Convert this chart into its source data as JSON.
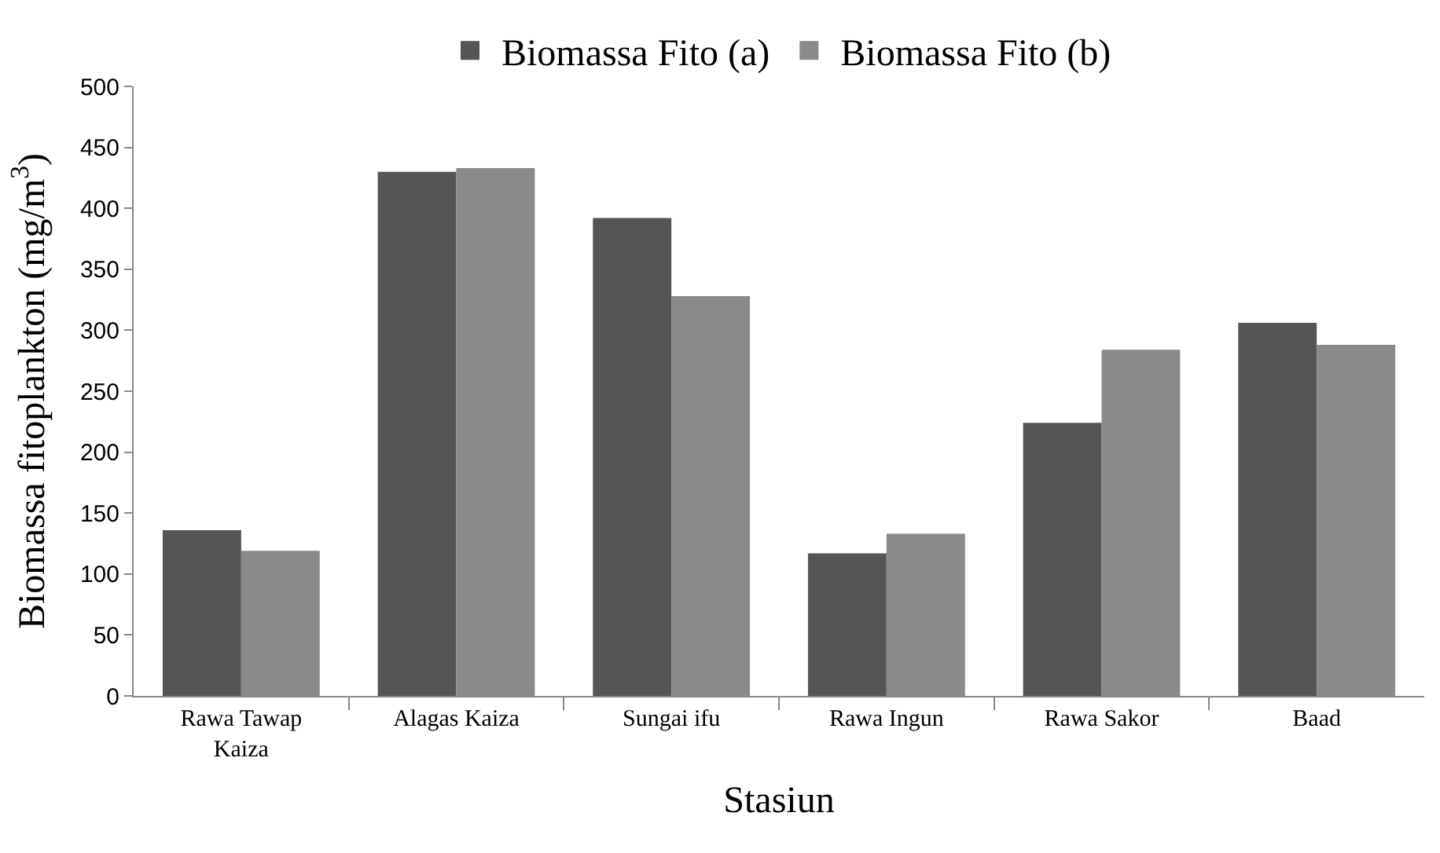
{
  "chart_data": {
    "type": "bar",
    "xlabel": "Stasiun",
    "ylabel": "Biomassa fitoplankton (mg/m$^{3}$)",
    "categories": [
      "Rawa Tawap Kaiza",
      "Alagas Kaiza",
      "Sungai ifu",
      "Rawa Ingun",
      "Rawa Sakor",
      "Baad"
    ],
    "series": [
      {
        "name": "Biomassa Fito (a)",
        "color": "#555555",
        "values": [
          136,
          430,
          392,
          117,
          224,
          306
        ]
      },
      {
        "name": "Biomassa Fito (b)",
        "color": "#8a8a8a",
        "values": [
          119,
          433,
          328,
          133,
          284,
          288
        ]
      }
    ],
    "ylim": [
      0,
      500
    ],
    "yticks": [
      0,
      50,
      100,
      150,
      200,
      250,
      300,
      350,
      400,
      450,
      500
    ],
    "legend": "top"
  }
}
